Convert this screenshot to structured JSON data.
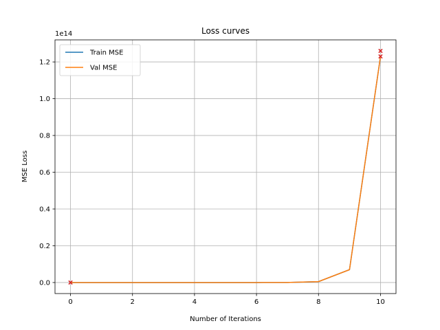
{
  "chart_data": {
    "type": "line",
    "title": "Loss curves",
    "xlabel": "Number of Iterations",
    "ylabel": "MSE Loss",
    "offset_label": "1e14",
    "y_scale_factor": 100000000000000.0,
    "xlim": [
      -0.5,
      10.5
    ],
    "ylim": [
      -0.06,
      1.32
    ],
    "x_ticks": [
      0,
      2,
      4,
      6,
      8,
      10
    ],
    "x_tick_labels": [
      "0",
      "2",
      "4",
      "6",
      "8",
      "10"
    ],
    "y_ticks": [
      0.0,
      0.2,
      0.4,
      0.6,
      0.8,
      1.0,
      1.2
    ],
    "y_tick_labels": [
      "0.0",
      "0.2",
      "0.4",
      "0.6",
      "0.8",
      "1.0",
      "1.2"
    ],
    "grid": true,
    "legend_position": "top-left",
    "x": [
      0,
      1,
      2,
      3,
      4,
      5,
      6,
      7,
      8,
      9,
      10
    ],
    "series": [
      {
        "name": "Train MSE",
        "color": "#1f77b4",
        "values": [
          0.0,
          0.0,
          0.0,
          0.0,
          0.0,
          0.0,
          0.0,
          0.0005,
          0.005,
          0.07,
          1.23
        ]
      },
      {
        "name": "Val MSE",
        "color": "#ff7f0e",
        "values": [
          0.0,
          0.0,
          0.0,
          0.0,
          0.0,
          0.0,
          0.0,
          0.0005,
          0.005,
          0.07,
          1.23
        ]
      }
    ],
    "markers": {
      "color": "#d62728",
      "symbol": "x",
      "points": [
        {
          "x": 0,
          "y": 0.0
        },
        {
          "x": 10,
          "y": 1.26
        },
        {
          "x": 10,
          "y": 1.23
        }
      ]
    }
  }
}
